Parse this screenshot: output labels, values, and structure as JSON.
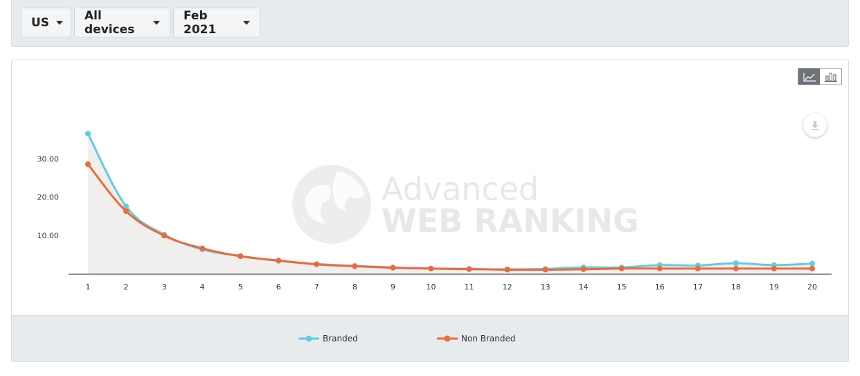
{
  "filters": {
    "country": "US",
    "device": "All devices",
    "date": "Feb 2021"
  },
  "watermark": {
    "line1": "Advanced",
    "line2": "WEB RANKING"
  },
  "colors": {
    "branded": "#5bcfe0",
    "non_branded": "#f0683a",
    "area_fill": "#efedeb"
  },
  "icons": {
    "line_toggle": "line-chart-icon",
    "bar_toggle": "bar-chart-icon",
    "download": "download-icon"
  },
  "chart_data": {
    "type": "line",
    "title": "",
    "xlabel": "",
    "ylabel": "",
    "x": [
      1,
      2,
      3,
      4,
      5,
      6,
      7,
      8,
      9,
      10,
      11,
      12,
      13,
      14,
      15,
      16,
      17,
      18,
      19,
      20
    ],
    "y_ticks": [
      "10.00",
      "20.00",
      "30.00"
    ],
    "ylim": [
      0,
      37
    ],
    "legend_position": "bottom",
    "grid": false,
    "series": [
      {
        "name": "Branded",
        "values": [
          36.6,
          17.6,
          10.2,
          6.3,
          4.6,
          3.3,
          2.5,
          2.0,
          1.6,
          1.3,
          1.1,
          1.1,
          1.2,
          1.6,
          1.6,
          2.2,
          2.1,
          2.7,
          2.2,
          2.6
        ]
      },
      {
        "name": "Non Branded",
        "values": [
          28.6,
          16.3,
          9.9,
          6.6,
          4.5,
          3.4,
          2.4,
          1.9,
          1.5,
          1.3,
          1.2,
          1.0,
          1.0,
          1.1,
          1.3,
          1.3,
          1.3,
          1.3,
          1.3,
          1.3
        ]
      }
    ]
  }
}
